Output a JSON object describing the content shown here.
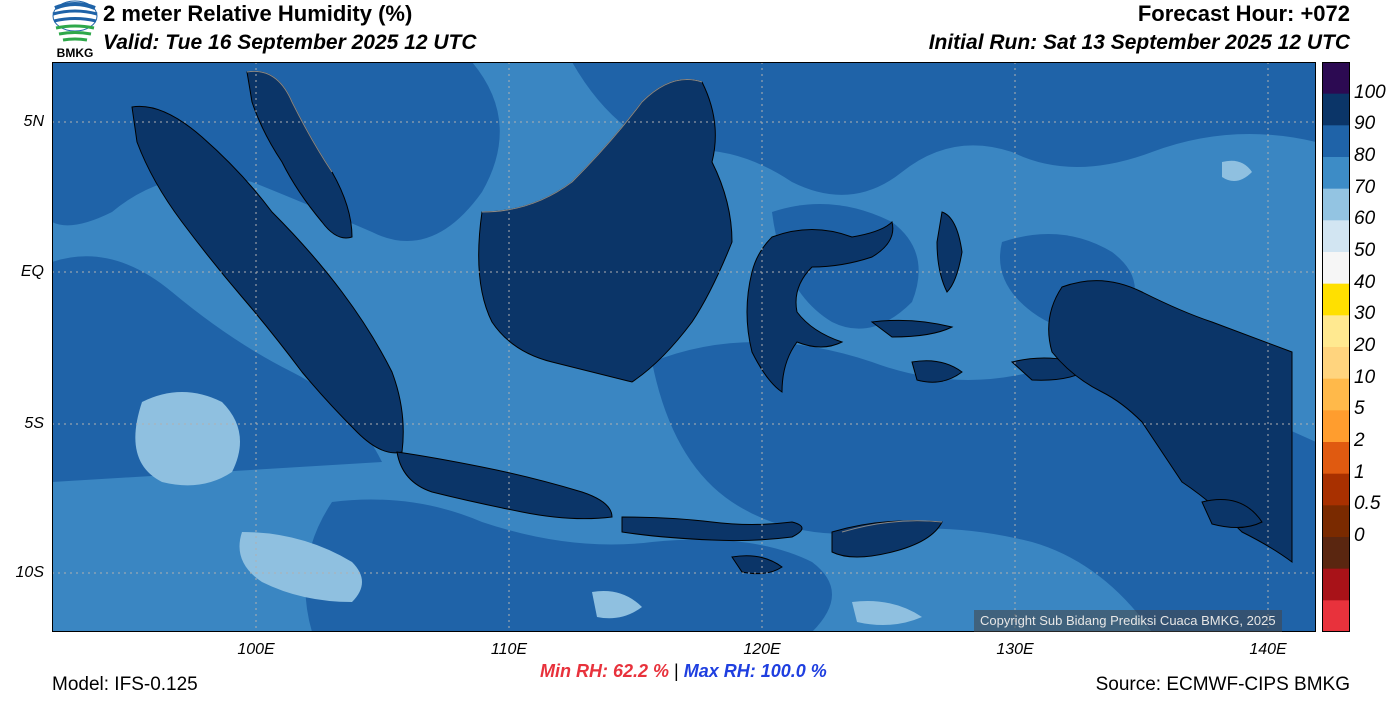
{
  "header": {
    "title": "2 meter Relative Humidity (%)",
    "valid": "Valid: Tue 16 September 2025 12 UTC",
    "forecast_hour": "Forecast Hour: +072",
    "initial_run": "Initial Run: Sat 13 September 2025 12 UTC",
    "logo_text": "BMKG"
  },
  "map": {
    "lat_labels": [
      "5N",
      "EQ",
      "5S",
      "10S"
    ],
    "lon_labels": [
      "100E",
      "110E",
      "120E",
      "130E",
      "140E"
    ],
    "colors": {
      "land": "#0b3568",
      "sea_base": "#1f63a8",
      "sea_mid": "#3a86c2",
      "sea_light": "#8fc0e0",
      "border": "#000000",
      "coast": "#888888"
    }
  },
  "colorbar": {
    "labels": [
      "100",
      "90",
      "80",
      "70",
      "60",
      "50",
      "40",
      "30",
      "20",
      "10",
      "5",
      "2",
      "1",
      "0.5",
      "0"
    ],
    "colors": [
      "#2c0a52",
      "#0b3568",
      "#1f63a8",
      "#3d8cc6",
      "#93c4e2",
      "#d2e5f2",
      "#f6f6f6",
      "#ffe000",
      "#ffe990",
      "#ffd47e",
      "#ffb94a",
      "#ff9d2e",
      "#e05a10",
      "#a83000",
      "#7a2a00",
      "#5a2610",
      "#a81218",
      "#e8323c"
    ]
  },
  "footer": {
    "model": "Model: IFS-0.125",
    "source": "Source: ECMWF-CIPS BMKG",
    "min_rh": "Min RH:  62.2 %",
    "separator": "|",
    "max_rh": "Max RH: 100.0 %",
    "copyright": "Copyright Sub Bidang Prediksi Cuaca BMKG, 2025"
  }
}
